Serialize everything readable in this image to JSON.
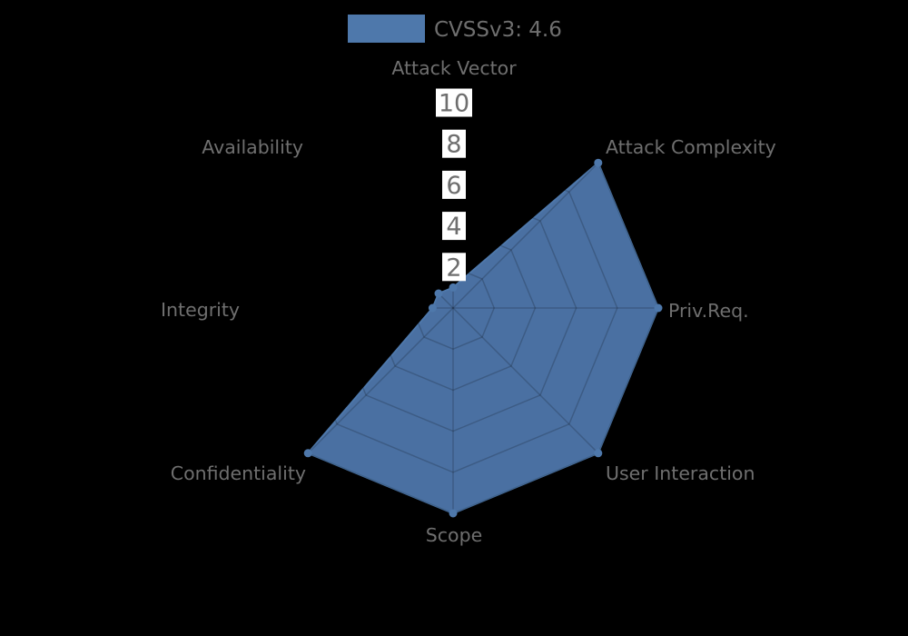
{
  "chart_data": {
    "type": "radar",
    "legend_label": "CVSSv3: 4.6",
    "legend_position": "top-center",
    "categories": [
      "Attack Vector",
      "Attack Complexity",
      "Priv.Req.",
      "User Interaction",
      "Scope",
      "Confidentiality",
      "Integrity",
      "Availability"
    ],
    "series": [
      {
        "name": "CVSSv3: 4.6",
        "values": [
          1,
          10,
          10,
          10,
          10,
          10,
          1,
          1
        ],
        "color": "#4e78ab"
      }
    ],
    "radial_ticks": [
      2,
      4,
      6,
      8,
      10
    ],
    "rlim": [
      0,
      10
    ],
    "grid": true,
    "colors": {
      "background": "#000000",
      "axis_label": "#6f6f6f",
      "tick_label": "#6e6e6e",
      "tick_box": "#ffffff",
      "grid_line": "rgba(0,0,0,0.18)",
      "series_fill": "#4c74a7",
      "series_stroke": "#4e78ab"
    }
  }
}
